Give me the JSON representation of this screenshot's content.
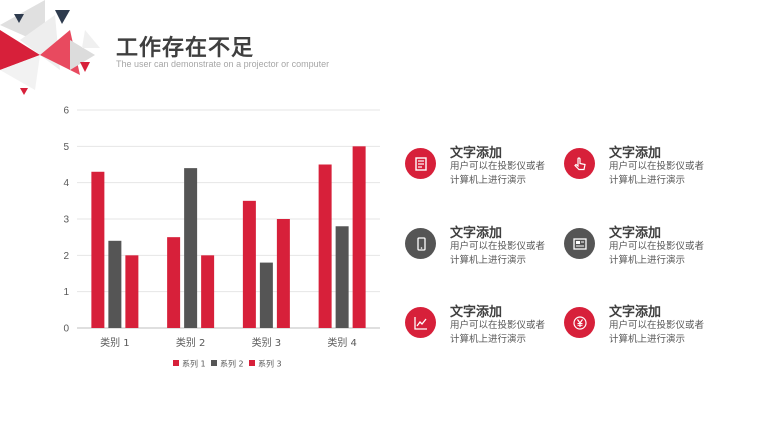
{
  "header": {
    "title": "工作存在不足",
    "subtitle": "The user can demonstrate on a projector or computer"
  },
  "chart_data": {
    "type": "bar",
    "categories": [
      "类别 1",
      "类别 2",
      "类别 3",
      "类别 4"
    ],
    "series": [
      {
        "name": "系列 1",
        "values": [
          4.3,
          2.5,
          3.5,
          4.5
        ],
        "color": "#d7203a"
      },
      {
        "name": "系列 2",
        "values": [
          2.4,
          4.4,
          1.8,
          2.8
        ],
        "color": "#555555"
      },
      {
        "name": "系列 3",
        "values": [
          2.0,
          2.0,
          3.0,
          5.0
        ],
        "color": "#d7203a"
      }
    ],
    "ylim": [
      0,
      6
    ],
    "yticks": [
      0,
      1,
      2,
      3,
      4,
      5,
      6
    ],
    "grid": true,
    "legend": "bottom"
  },
  "features": [
    {
      "title": "文字添加",
      "text": "用户可以在投影仪或者计算机上进行演示",
      "icon": "document-icon",
      "color": "#d7203a"
    },
    {
      "title": "文字添加",
      "text": "用户可以在投影仪或者计算机上进行演示",
      "icon": "hand-pointer-icon",
      "color": "#d7203a"
    },
    {
      "title": "文字添加",
      "text": "用户可以在投影仪或者计算机上进行演示",
      "icon": "phone-icon",
      "color": "#555555"
    },
    {
      "title": "文字添加",
      "text": "用户可以在投影仪或者计算机上进行演示",
      "icon": "news-icon",
      "color": "#555555"
    },
    {
      "title": "文字添加",
      "text": "用户可以在投影仪或者计算机上进行演示",
      "icon": "line-chart-icon",
      "color": "#d7203a"
    },
    {
      "title": "文字添加",
      "text": "用户可以在投影仪或者计算机上进行演示",
      "icon": "yen-icon",
      "color": "#d7203a"
    }
  ]
}
